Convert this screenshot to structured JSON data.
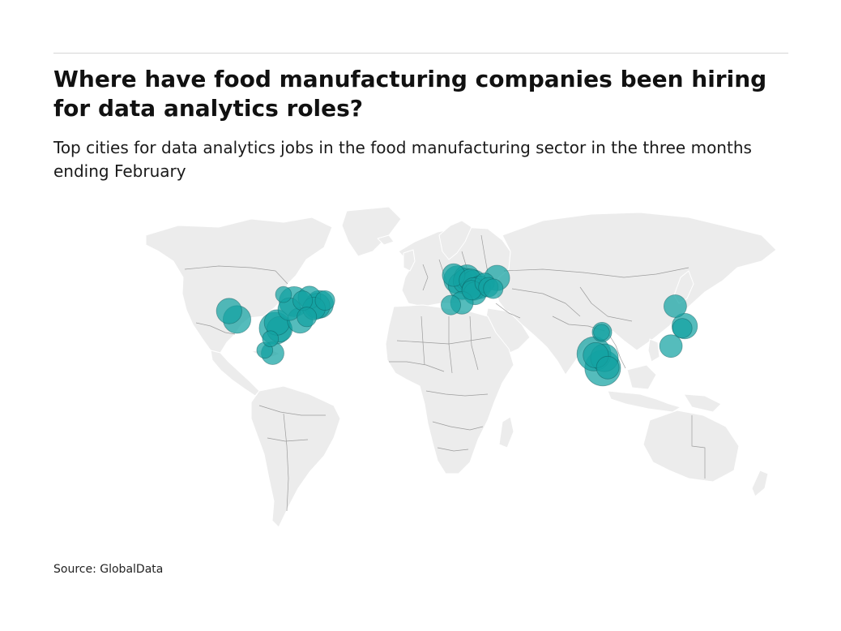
{
  "header": {
    "title": "Where have food manufacturing companies been hiring for data analytics roles?",
    "subtitle": "Top cities for data analytics jobs in the food manufacturing sector in the three months ending February"
  },
  "footer": {
    "source": "Source: GlobalData"
  },
  "map": {
    "projection": "equirectangular-approx",
    "lon_range": [
      -180,
      180
    ],
    "lat_range": [
      -60,
      85
    ],
    "colors": {
      "land": "#ececec",
      "border": "#9c9c9c",
      "bubble": "#13a2a2",
      "bubble_outline": "#0b4f52"
    },
    "bubbles": [
      {
        "lon": -122.4,
        "lat": 37.8,
        "size": 5
      },
      {
        "lon": -118.2,
        "lat": 34.1,
        "size": 6
      },
      {
        "lon": -97.7,
        "lat": 30.3,
        "size": 8
      },
      {
        "lon": -95.4,
        "lat": 29.8,
        "size": 5
      },
      {
        "lon": -96.8,
        "lat": 32.8,
        "size": 5
      },
      {
        "lon": -93.3,
        "lat": 45.0,
        "size": 2
      },
      {
        "lon": -87.6,
        "lat": 41.9,
        "size": 7
      },
      {
        "lon": -84.4,
        "lat": 33.7,
        "size": 5
      },
      {
        "lon": -90.2,
        "lat": 38.6,
        "size": 4
      },
      {
        "lon": -83.0,
        "lat": 42.3,
        "size": 3
      },
      {
        "lon": -79.4,
        "lat": 43.7,
        "size": 4
      },
      {
        "lon": -75.2,
        "lat": 40.0,
        "size": 5
      },
      {
        "lon": -74.0,
        "lat": 40.7,
        "size": 6
      },
      {
        "lon": -77.0,
        "lat": 38.9,
        "size": 4
      },
      {
        "lon": -71.1,
        "lat": 42.4,
        "size": 3
      },
      {
        "lon": -80.8,
        "lat": 35.2,
        "size": 3
      },
      {
        "lon": -99.1,
        "lat": 19.4,
        "size": 4
      },
      {
        "lon": -103.3,
        "lat": 20.7,
        "size": 2
      },
      {
        "lon": -100.3,
        "lat": 25.7,
        "size": 2
      },
      {
        "lon": -0.1,
        "lat": 51.5,
        "size": 6
      },
      {
        "lon": -2.2,
        "lat": 53.5,
        "size": 4
      },
      {
        "lon": 2.35,
        "lat": 48.9,
        "size": 6
      },
      {
        "lon": 4.9,
        "lat": 52.4,
        "size": 5
      },
      {
        "lon": 4.4,
        "lat": 50.8,
        "size": 5
      },
      {
        "lon": 8.7,
        "lat": 50.1,
        "size": 5
      },
      {
        "lon": 6.8,
        "lat": 51.2,
        "size": 4
      },
      {
        "lon": 11.6,
        "lat": 48.1,
        "size": 4
      },
      {
        "lon": 8.5,
        "lat": 47.4,
        "size": 4
      },
      {
        "lon": 7.4,
        "lat": 46.9,
        "size": 3
      },
      {
        "lon": 9.2,
        "lat": 45.5,
        "size": 4
      },
      {
        "lon": -3.7,
        "lat": 40.4,
        "size": 3
      },
      {
        "lon": 2.2,
        "lat": 41.4,
        "size": 4
      },
      {
        "lon": 21.0,
        "lat": 52.2,
        "size": 5
      },
      {
        "lon": 14.4,
        "lat": 50.1,
        "size": 3
      },
      {
        "lon": 16.4,
        "lat": 48.2,
        "size": 3
      },
      {
        "lon": 19.0,
        "lat": 47.5,
        "size": 3
      },
      {
        "lon": 72.9,
        "lat": 19.1,
        "size": 9
      },
      {
        "lon": 73.9,
        "lat": 18.5,
        "size": 5
      },
      {
        "lon": 77.6,
        "lat": 12.97,
        "size": 10
      },
      {
        "lon": 78.5,
        "lat": 17.4,
        "size": 6
      },
      {
        "lon": 80.3,
        "lat": 13.1,
        "size": 4
      },
      {
        "lon": 77.2,
        "lat": 28.6,
        "size": 3
      },
      {
        "lon": 77.0,
        "lat": 28.5,
        "size": 2
      },
      {
        "lon": 116.4,
        "lat": 39.9,
        "size": 4
      },
      {
        "lon": 121.5,
        "lat": 31.2,
        "size": 5
      },
      {
        "lon": 120.2,
        "lat": 30.3,
        "size": 3
      },
      {
        "lon": 114.1,
        "lat": 22.5,
        "size": 4
      }
    ]
  }
}
